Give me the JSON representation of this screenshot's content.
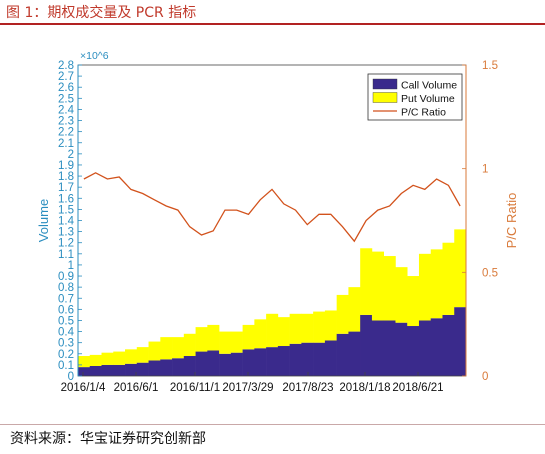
{
  "figure_title": "图 1：期权成交量及 PCR 指标",
  "source_note": "资料来源：华宝证券研究创新部",
  "colors": {
    "call": "#3a2a8c",
    "put": "#ffff00",
    "pcr": "#d2521c",
    "left_axis": "#2a8dbf",
    "right_axis": "#d97a3a",
    "header_rule": "#b22222"
  },
  "chart_data": {
    "type": "area",
    "title": "",
    "xlabel": "",
    "x_tick_labels": [
      "2016/1/4",
      "2016/6/1",
      "2016/11/1",
      "2017/3/29",
      "2017/8/23",
      "2018/1/18",
      "2018/6/21"
    ],
    "y_left": {
      "label": "Volume",
      "exponent_label": "×10^6",
      "lim": [
        0,
        2.8
      ],
      "ticks": [
        0,
        0.1,
        0.2,
        0.3,
        0.4,
        0.5,
        0.6,
        0.7,
        0.8,
        0.9,
        1,
        1.1,
        1.2,
        1.3,
        1.4,
        1.5,
        1.6,
        1.7,
        1.8,
        1.9,
        2,
        2.1,
        2.2,
        2.3,
        2.4,
        2.5,
        2.6,
        2.7,
        2.8
      ]
    },
    "y_right": {
      "label": "P/C Ratio",
      "lim": [
        0,
        1.5
      ],
      "ticks": [
        0,
        0.5,
        1,
        1.5
      ]
    },
    "legend": {
      "position": "top-right",
      "entries": [
        "Call Volume",
        "Put Volume",
        "P/C Ratio"
      ]
    },
    "grid": false,
    "series": [
      {
        "name": "Call Volume",
        "type": "bar",
        "axis": "left",
        "unit": "million contracts (approx, monthly)",
        "x": [
          "2016/1",
          "2016/2",
          "2016/3",
          "2016/4",
          "2016/5",
          "2016/6",
          "2016/7",
          "2016/8",
          "2016/9",
          "2016/10",
          "2016/11",
          "2016/12",
          "2017/1",
          "2017/2",
          "2017/3",
          "2017/4",
          "2017/5",
          "2017/6",
          "2017/7",
          "2017/8",
          "2017/9",
          "2017/10",
          "2017/11",
          "2017/12",
          "2018/1",
          "2018/2",
          "2018/3",
          "2018/4",
          "2018/5",
          "2018/6",
          "2018/7",
          "2018/8",
          "2018/9"
        ],
        "values": [
          0.08,
          0.09,
          0.1,
          0.1,
          0.11,
          0.12,
          0.14,
          0.15,
          0.16,
          0.18,
          0.22,
          0.23,
          0.2,
          0.21,
          0.24,
          0.25,
          0.26,
          0.27,
          0.29,
          0.3,
          0.3,
          0.32,
          0.38,
          0.4,
          0.55,
          0.5,
          0.5,
          0.48,
          0.45,
          0.5,
          0.52,
          0.55,
          0.62
        ]
      },
      {
        "name": "Put Volume",
        "type": "bar",
        "axis": "left",
        "unit": "million contracts (approx, monthly, stacked above call)",
        "x": [
          "2016/1",
          "2016/2",
          "2016/3",
          "2016/4",
          "2016/5",
          "2016/6",
          "2016/7",
          "2016/8",
          "2016/9",
          "2016/10",
          "2016/11",
          "2016/12",
          "2017/1",
          "2017/2",
          "2017/3",
          "2017/4",
          "2017/5",
          "2017/6",
          "2017/7",
          "2017/8",
          "2017/9",
          "2017/10",
          "2017/11",
          "2017/12",
          "2018/1",
          "2018/2",
          "2018/3",
          "2018/4",
          "2018/5",
          "2018/6",
          "2018/7",
          "2018/8",
          "2018/9"
        ],
        "values": [
          0.1,
          0.1,
          0.11,
          0.12,
          0.13,
          0.14,
          0.17,
          0.2,
          0.19,
          0.2,
          0.22,
          0.23,
          0.2,
          0.19,
          0.22,
          0.26,
          0.3,
          0.26,
          0.27,
          0.26,
          0.28,
          0.27,
          0.35,
          0.4,
          0.6,
          0.62,
          0.58,
          0.5,
          0.45,
          0.6,
          0.62,
          0.65,
          0.7
        ]
      },
      {
        "name": "P/C Ratio",
        "type": "line",
        "axis": "right",
        "x": [
          "2016/1",
          "2016/2",
          "2016/3",
          "2016/4",
          "2016/5",
          "2016/6",
          "2016/7",
          "2016/8",
          "2016/9",
          "2016/10",
          "2016/11",
          "2016/12",
          "2017/1",
          "2017/2",
          "2017/3",
          "2017/4",
          "2017/5",
          "2017/6",
          "2017/7",
          "2017/8",
          "2017/9",
          "2017/10",
          "2017/11",
          "2017/12",
          "2018/1",
          "2018/2",
          "2018/3",
          "2018/4",
          "2018/5",
          "2018/6",
          "2018/7",
          "2018/8",
          "2018/9"
        ],
        "values": [
          0.95,
          0.98,
          0.95,
          0.96,
          0.9,
          0.88,
          0.85,
          0.82,
          0.8,
          0.72,
          0.68,
          0.7,
          0.8,
          0.8,
          0.78,
          0.85,
          0.9,
          0.83,
          0.8,
          0.73,
          0.78,
          0.78,
          0.72,
          0.65,
          0.75,
          0.8,
          0.82,
          0.88,
          0.92,
          0.9,
          0.95,
          0.92,
          0.82
        ]
      }
    ]
  }
}
